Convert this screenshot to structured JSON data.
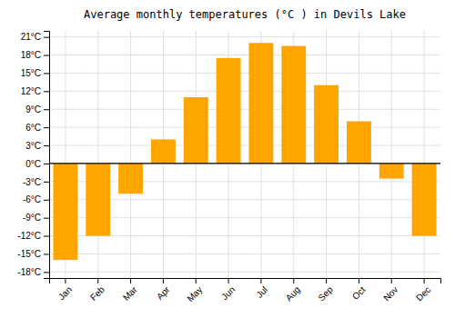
{
  "chart_data": {
    "type": "bar",
    "title": "Average monthly temperatures (°C ) in Devils Lake",
    "categories": [
      "Jan",
      "Feb",
      "Mar",
      "Apr",
      "May",
      "Jun",
      "Jul",
      "Aug",
      "Sep",
      "Oct",
      "Nov",
      "Dec"
    ],
    "values": [
      -16,
      -12,
      -5,
      4,
      11,
      17.5,
      20,
      19.5,
      13,
      7,
      -2.5,
      -12
    ],
    "color": "#FFA500",
    "ylim": [
      -19,
      22
    ],
    "yticks": [
      {
        "value": -18,
        "label": "-18°C"
      },
      {
        "value": -15,
        "label": "-15°C"
      },
      {
        "value": -12,
        "label": "-12°C"
      },
      {
        "value": -9,
        "label": "-9°C"
      },
      {
        "value": -6,
        "label": "-6°C"
      },
      {
        "value": -3,
        "label": "-3°C"
      },
      {
        "value": 0,
        "label": "0°C"
      },
      {
        "value": 3,
        "label": "3°C"
      },
      {
        "value": 6,
        "label": "6°C"
      },
      {
        "value": 9,
        "label": "9°C"
      },
      {
        "value": 12,
        "label": "12°C"
      },
      {
        "value": 15,
        "label": "15°C"
      },
      {
        "value": 18,
        "label": "18°C"
      },
      {
        "value": 21,
        "label": "21°C"
      }
    ],
    "grid": true
  }
}
